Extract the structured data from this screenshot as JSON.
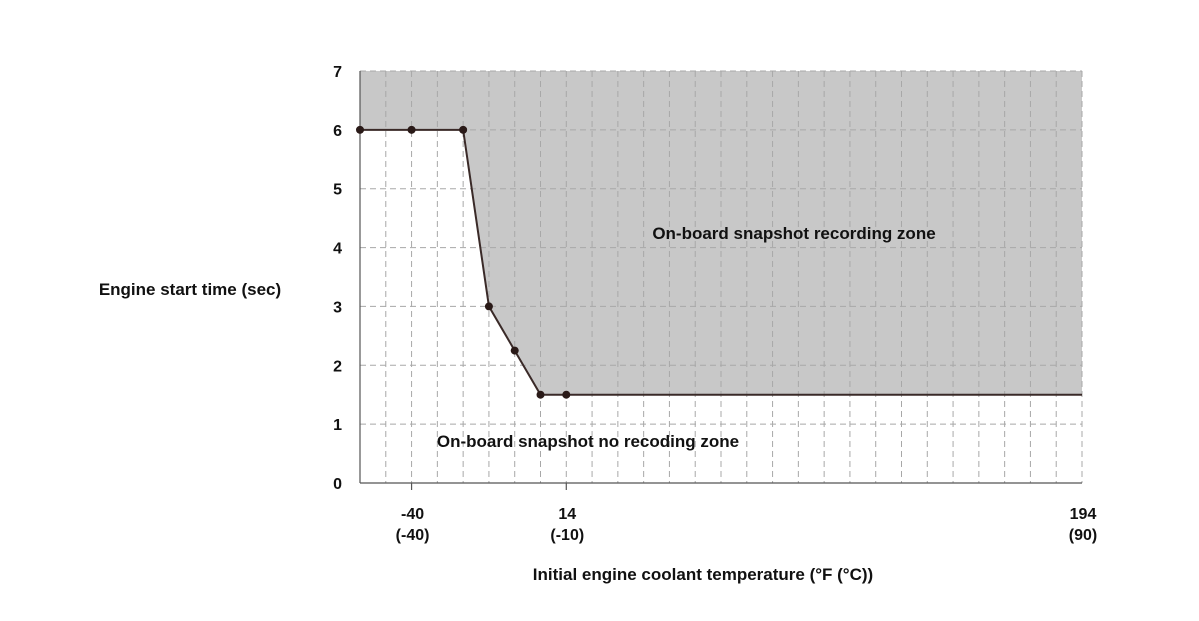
{
  "chart_data": {
    "type": "line",
    "title": "",
    "xlabel": "Initial engine coolant temperature (°F (°C))",
    "ylabel": "Engine start time (sec)",
    "xlim": [
      -58,
      194
    ],
    "ylim": [
      0,
      7
    ],
    "grid": true,
    "x_ticks": [
      {
        "value": -40,
        "line1": "-40",
        "line2": "(-40)"
      },
      {
        "value": 14,
        "line1": "14",
        "line2": "(-10)"
      },
      {
        "value": 194,
        "line1": "194",
        "line2": "(90)"
      }
    ],
    "y_ticks": [
      "0",
      "1",
      "2",
      "3",
      "4",
      "5",
      "6",
      "7"
    ],
    "series": [
      {
        "name": "",
        "points": [
          {
            "x": -58,
            "y": 6.0
          },
          {
            "x": -40,
            "y": 6.0
          },
          {
            "x": -22,
            "y": 6.0
          },
          {
            "x": -13,
            "y": 3.0
          },
          {
            "x": -4,
            "y": 2.25
          },
          {
            "x": 5,
            "y": 1.5
          },
          {
            "x": 14,
            "y": 1.5
          },
          {
            "x": 194,
            "y": 1.5
          }
        ],
        "markers": 7
      }
    ],
    "annotations": {
      "upper_zone": "On-board snapshot recording zone",
      "lower_zone": "On-board snapshot no recoding zone"
    },
    "colors": {
      "zone_fill": "#c8c8c8",
      "line": "#3a2a28",
      "grid": "#a8a8a8",
      "grid_light": "#d0d0d0"
    }
  }
}
